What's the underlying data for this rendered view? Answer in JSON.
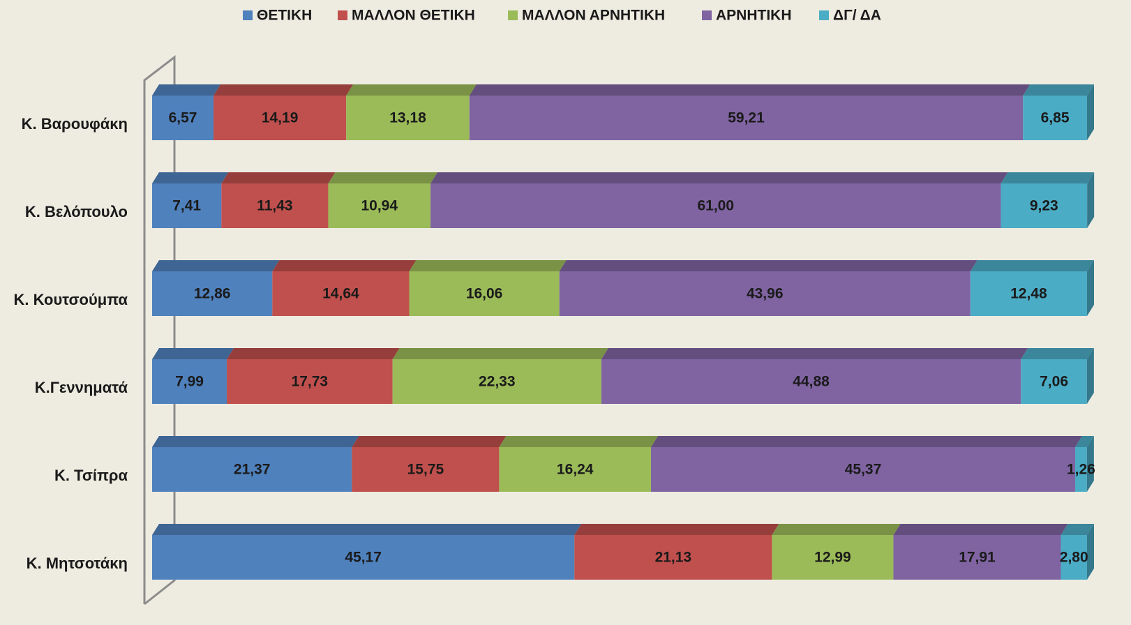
{
  "chart_data": {
    "type": "stacked-bar-horizontal",
    "categories": [
      "Κ. Βαρουφάκη",
      "Κ. Βελόπουλο",
      "Κ.  Κουτσούμπα",
      "Κ.Γεννηματά",
      "Κ. Τσίπρα",
      "Κ. Μητσοτάκη"
    ],
    "xlim": [
      0,
      100
    ],
    "legend": "top",
    "series": [
      {
        "name": "ΘΕΤΙΚΗ",
        "color": "#4f81bd",
        "values": [
          6.57,
          7.41,
          12.86,
          7.99,
          21.37,
          45.17
        ],
        "value_labels": [
          "6,57",
          "7,41",
          "12,86",
          "7,99",
          "21,37",
          "45,17"
        ]
      },
      {
        "name": "ΜΑΛΛΟΝ ΘΕΤΙΚΗ",
        "color": "#c0504d",
        "values": [
          14.19,
          11.43,
          14.64,
          17.73,
          15.75,
          21.13
        ],
        "value_labels": [
          "14,19",
          "11,43",
          "14,64",
          "17,73",
          "15,75",
          "21,13"
        ]
      },
      {
        "name": "ΜΑΛΛΟΝ ΑΡΝΗΤΙΚΗ",
        "color": "#9bbb59",
        "values": [
          13.18,
          10.94,
          16.06,
          22.33,
          16.24,
          12.99
        ],
        "value_labels": [
          "13,18",
          "10,94",
          "16,06",
          "22,33",
          "16,24",
          "12,99"
        ]
      },
      {
        "name": "ΑΡΝΗΤΙΚΗ",
        "color": "#8064a2",
        "values": [
          59.21,
          61.0,
          43.96,
          44.88,
          45.37,
          17.91
        ],
        "value_labels": [
          "59,21",
          "61,00",
          "43,96",
          "44,88",
          "45,37",
          "17,91"
        ]
      },
      {
        "name": "ΔΓ/ ΔΑ",
        "color": "#4bacc6",
        "values": [
          6.85,
          9.23,
          12.48,
          7.06,
          1.26,
          2.8
        ],
        "value_labels": [
          "6,85",
          "9,23",
          "12,48",
          "7,06",
          "1,26",
          "2,80"
        ]
      }
    ]
  }
}
